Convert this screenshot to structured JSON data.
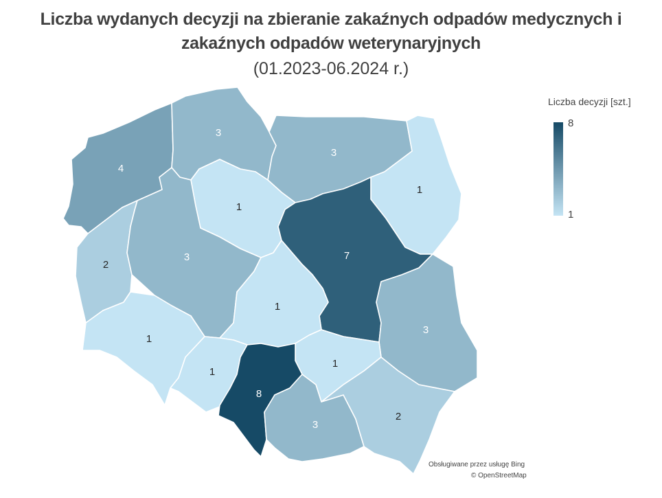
{
  "title": {
    "line1": "Liczba wydanych decyzji na zbieranie zakaźnych odpadów medycznych i",
    "line2": "zakaźnych odpadów weterynaryjnych",
    "line3": "(01.2023-06.2024 r.)"
  },
  "legend": {
    "title": "Liczba decyzji  [szt.]",
    "max": "8",
    "min": "1",
    "color_max": "#164a66",
    "color_min": "#c4e4f4"
  },
  "regions": [
    {
      "id": "zachodniopomorskie",
      "value": 4
    },
    {
      "id": "pomorskie",
      "value": 3
    },
    {
      "id": "warminsko-mazurskie",
      "value": 3
    },
    {
      "id": "podlaskie",
      "value": 1
    },
    {
      "id": "kujawsko-pomorskie",
      "value": 1
    },
    {
      "id": "lubuskie",
      "value": 2
    },
    {
      "id": "wielkopolskie",
      "value": 3
    },
    {
      "id": "mazowieckie",
      "value": 7
    },
    {
      "id": "lodzkie",
      "value": 1
    },
    {
      "id": "lubelskie",
      "value": 3
    },
    {
      "id": "dolnoslaskie",
      "value": 1
    },
    {
      "id": "opolskie",
      "value": 1
    },
    {
      "id": "swietokrzyskie",
      "value": 1
    },
    {
      "id": "slaskie",
      "value": 8
    },
    {
      "id": "malopolskie",
      "value": 3
    },
    {
      "id": "podkarpackie",
      "value": 2
    }
  ],
  "attribution": {
    "line1": "Obsługiwane przez usługę Bing",
    "line2": "© OpenStreetMap"
  }
}
